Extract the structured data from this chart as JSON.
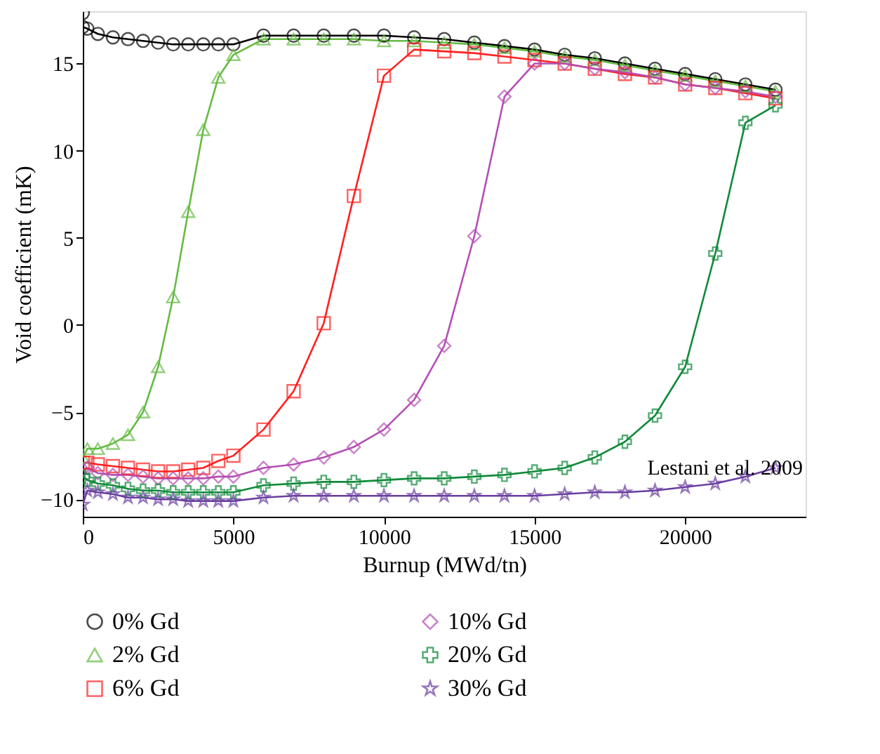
{
  "chart_data": {
    "type": "line",
    "xlabel": "Burnup (MWd/tn)",
    "ylabel": "Void coefficient (mK)",
    "xlim": [
      0,
      24000
    ],
    "xticks": [
      0,
      5000,
      10000,
      15000,
      20000
    ],
    "ylim": [
      -11,
      18
    ],
    "yticks": [
      -10,
      -5,
      0,
      5,
      10,
      15
    ],
    "grid": false,
    "legend": "bottom",
    "line_style": "solid",
    "annotations": [
      "Lestani et al. 2009"
    ],
    "x": [
      0,
      150,
      500,
      1000,
      1500,
      2000,
      2500,
      3000,
      3500,
      4000,
      4500,
      5000,
      6000,
      7000,
      8000,
      9000,
      10000,
      11000,
      12000,
      13000,
      14000,
      15000,
      16000,
      17000,
      18000,
      19000,
      20000,
      21000,
      22000,
      23000
    ],
    "series": [
      {
        "name": "0% Gd",
        "color": "#000000",
        "marker": "circle",
        "x": [
          0,
          0,
          150,
          500,
          1000,
          1500,
          2000,
          2500,
          3000,
          3500,
          4000,
          4500,
          5000,
          6000,
          7000,
          8000,
          9000,
          10000,
          11000,
          12000,
          13000,
          14000,
          15000,
          16000,
          17000,
          18000,
          19000,
          20000,
          21000,
          22000,
          23000
        ],
        "values": [
          17.9,
          17.1,
          17.0,
          16.7,
          16.5,
          16.4,
          16.3,
          16.2,
          16.1,
          16.1,
          16.1,
          16.1,
          16.1,
          16.6,
          16.6,
          16.6,
          16.6,
          16.6,
          16.5,
          16.4,
          16.2,
          16.0,
          15.8,
          15.5,
          15.3,
          15.0,
          14.7,
          14.4,
          14.1,
          13.8,
          13.5
        ]
      },
      {
        "name": "2% Gd",
        "color": "#66bb44",
        "marker": "triangle",
        "values": [
          -7.6,
          -7.1,
          -7.1,
          -6.8,
          -6.3,
          -5.0,
          -2.4,
          1.6,
          6.5,
          11.2,
          14.2,
          15.5,
          16.4,
          16.4,
          16.4,
          16.4,
          16.3,
          16.3,
          16.2,
          16.1,
          15.9,
          15.7,
          15.4,
          15.2,
          14.9,
          14.6,
          14.3,
          14.0,
          13.7,
          13.4
        ]
      },
      {
        "name": "6% Gd",
        "color": "#ff2020",
        "marker": "square",
        "values": [
          -7.9,
          -7.9,
          -8.0,
          -8.1,
          -8.2,
          -8.3,
          -8.4,
          -8.4,
          -8.3,
          -8.2,
          -7.8,
          -7.5,
          -6.0,
          -3.8,
          0.1,
          7.4,
          14.3,
          15.8,
          15.7,
          15.6,
          15.4,
          15.2,
          15.0,
          14.7,
          14.4,
          14.2,
          13.8,
          13.6,
          13.3,
          13.0
        ]
      },
      {
        "name": "10% Gd",
        "color": "#b44fb4",
        "marker": "diamond",
        "values": [
          -8.3,
          -8.2,
          -8.5,
          -8.6,
          -8.6,
          -8.7,
          -8.8,
          -8.8,
          -8.8,
          -8.8,
          -8.7,
          -8.7,
          -8.2,
          -8.0,
          -7.6,
          -7.0,
          -6.0,
          -4.3,
          -1.2,
          5.1,
          13.1,
          15.0,
          15.0,
          14.7,
          14.5,
          14.2,
          13.8,
          13.6,
          13.4,
          13.1
        ]
      },
      {
        "name": "20% Gd",
        "color": "#108a3a",
        "marker": "cross",
        "values": [
          -8.7,
          -8.9,
          -9.1,
          -9.2,
          -9.4,
          -9.5,
          -9.5,
          -9.6,
          -9.6,
          -9.6,
          -9.6,
          -9.6,
          -9.2,
          -9.1,
          -9.0,
          -9.0,
          -8.9,
          -8.8,
          -8.8,
          -8.7,
          -8.6,
          -8.4,
          -8.2,
          -7.6,
          -6.7,
          -5.2,
          -2.4,
          4.1,
          11.6,
          12.6
        ]
      },
      {
        "name": "30% Gd",
        "color": "#6a3fa0",
        "marker": "star",
        "values": [
          -10.3,
          -9.5,
          -9.6,
          -9.7,
          -9.9,
          -9.9,
          -10.0,
          -10.0,
          -10.1,
          -10.1,
          -10.1,
          -10.1,
          -9.9,
          -9.8,
          -9.8,
          -9.8,
          -9.8,
          -9.8,
          -9.8,
          -9.8,
          -9.8,
          -9.8,
          -9.7,
          -9.6,
          -9.6,
          -9.5,
          -9.3,
          -9.1,
          -8.7,
          -8.2
        ]
      }
    ]
  }
}
